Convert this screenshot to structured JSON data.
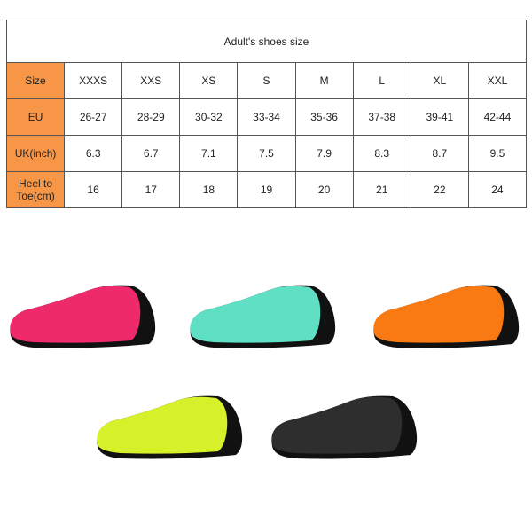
{
  "table": {
    "title": "Adult's shoes size",
    "rows": [
      {
        "label": "Size",
        "values": [
          "XXXS",
          "XXS",
          "XS",
          "S",
          "M",
          "L",
          "XL",
          "XXL"
        ]
      },
      {
        "label": "EU",
        "values": [
          "26-27",
          "28-29",
          "30-32",
          "33-34",
          "35-36",
          "37-38",
          "39-41",
          "42-44"
        ]
      },
      {
        "label": "UK(inch)",
        "values": [
          "6.3",
          "6.7",
          "7.1",
          "7.5",
          "7.9",
          "8.3",
          "8.7",
          "9.5"
        ]
      },
      {
        "label": "Heel to Toe(cm)",
        "values": [
          "16",
          "17",
          "18",
          "19",
          "20",
          "21",
          "22",
          "24"
        ]
      }
    ],
    "label_color": "#f79646"
  },
  "shoes": [
    {
      "color": "#ee2a6a",
      "name": "pink"
    },
    {
      "color": "#5fe0c4",
      "name": "teal"
    },
    {
      "color": "#f97a12",
      "name": "orange"
    },
    {
      "color": "#d6f02a",
      "name": "lime"
    },
    {
      "color": "#2e2e2e",
      "name": "black"
    }
  ]
}
